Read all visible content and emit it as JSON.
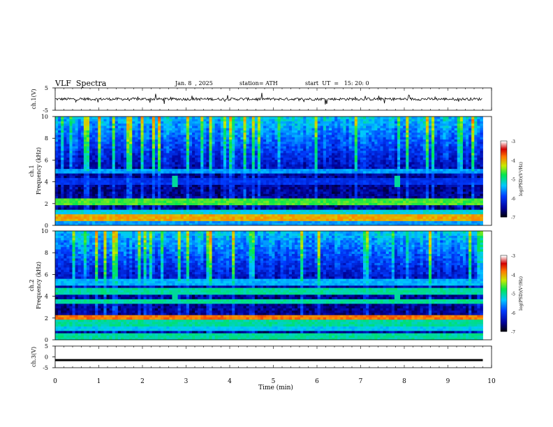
{
  "header": {
    "title": "VLF  Spectra",
    "date": "Jan. 8  , 2025",
    "station": "station= ATH",
    "start_ut": "start  UT  =   15: 20: 0"
  },
  "chart_data": [
    {
      "type": "line",
      "ylabel": "ch.1(V)",
      "ylim": [
        -5,
        5
      ],
      "yticks": [
        5,
        -5
      ],
      "xlim": [
        0,
        10
      ],
      "series": [
        {
          "color": "#000000",
          "baseline": 0,
          "noise_amplitude": 0.6,
          "spike_amplitude": 2.5
        }
      ]
    },
    {
      "type": "heatmap",
      "ylabel": "ch.1\nFrequency  (kHz)",
      "ylim": [
        0,
        10
      ],
      "yticks": [
        0,
        2,
        4,
        6,
        8,
        10
      ],
      "xlim": [
        0,
        9.8
      ],
      "colorbar": {
        "label": "log(PSD)(V²/Hz)",
        "range": [
          -7,
          -3
        ],
        "ticks": [
          -3,
          -4,
          -5,
          -6,
          -7
        ]
      },
      "bands_khz": [
        {
          "f": 0.2,
          "level": -5.5
        },
        {
          "f": 0.7,
          "level": -4.0
        },
        {
          "f": 1.2,
          "level": -5.2
        },
        {
          "f": 2.2,
          "level": -4.6
        },
        {
          "f": 4.1,
          "level": -6.0
        },
        {
          "f": 5.0,
          "level": -5.5
        }
      ],
      "events_min": [
        2.7,
        7.8
      ]
    },
    {
      "type": "heatmap",
      "ylabel": "ch.2\nFrequency  (kHz)",
      "ylim": [
        0,
        10
      ],
      "yticks": [
        0,
        2,
        4,
        6,
        8,
        10
      ],
      "xlim": [
        0,
        9.8
      ],
      "colorbar": {
        "label": "log(PSD)(V²/Hz)",
        "range": [
          -7,
          -3
        ],
        "ticks": [
          -3,
          -4,
          -5,
          -6,
          -7
        ]
      },
      "bands_khz": [
        {
          "f": 0.3,
          "level": -5.0
        },
        {
          "f": 1.0,
          "level": -5.3
        },
        {
          "f": 1.6,
          "level": -5.0
        },
        {
          "f": 2.1,
          "level": -3.8
        },
        {
          "f": 3.5,
          "level": -5.0
        },
        {
          "f": 4.5,
          "level": -5.0
        },
        {
          "f": 5.3,
          "level": -5.4
        }
      ],
      "events_min": [
        2.7,
        7.8
      ]
    },
    {
      "type": "line",
      "ylabel": "ch.3(V)",
      "ylim": [
        -5,
        5
      ],
      "yticks": [
        5,
        0,
        -5
      ],
      "xlim": [
        0,
        10
      ],
      "xlabel": "Time  (min)",
      "xticks": [
        0,
        1,
        2,
        3,
        4,
        5,
        6,
        7,
        8,
        9,
        10
      ],
      "series": [
        {
          "color": "#000000",
          "constant": -1.5
        }
      ]
    }
  ]
}
